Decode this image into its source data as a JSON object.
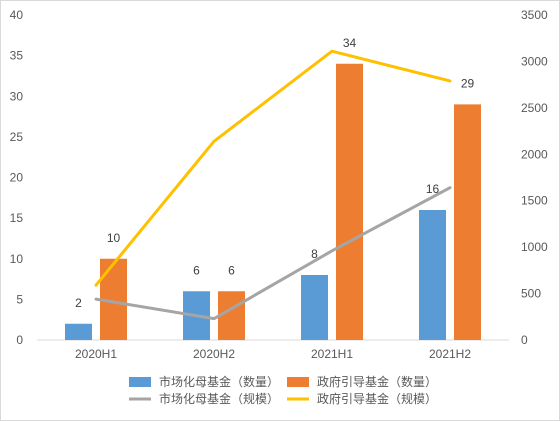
{
  "chart_data": {
    "type": "bar",
    "title": "",
    "categories": [
      "2020H1",
      "2020H2",
      "2021H1",
      "2021H2"
    ],
    "series": [
      {
        "name": "市场化母基金（数量）",
        "kind": "bar",
        "axis": "left",
        "color": "#5B9BD5",
        "values": [
          2,
          6,
          8,
          16
        ]
      },
      {
        "name": "政府引导基金（数量）",
        "kind": "bar",
        "axis": "left",
        "color": "#ED7D31",
        "values": [
          10,
          6,
          34,
          29
        ]
      },
      {
        "name": "市场化母基金（规模）",
        "kind": "line",
        "axis": "right",
        "color": "#A5A5A5",
        "values": [
          440,
          230,
          960,
          1640
        ]
      },
      {
        "name": "政府引导基金（规模）",
        "kind": "line",
        "axis": "right",
        "color": "#FFC000",
        "values": [
          590,
          2140,
          3110,
          2790
        ]
      }
    ],
    "left_axis": {
      "min": 0,
      "max": 40,
      "ticks": [
        "0",
        "5",
        "10",
        "15",
        "20",
        "25",
        "30",
        "35",
        "40"
      ]
    },
    "right_axis": {
      "min": 0,
      "max": 3500,
      "ticks": [
        "0",
        "500",
        "1000",
        "1500",
        "2000",
        "2500",
        "3000",
        "3500"
      ]
    },
    "bar_labels_shown": true,
    "grid": false,
    "legend_position": "bottom"
  }
}
